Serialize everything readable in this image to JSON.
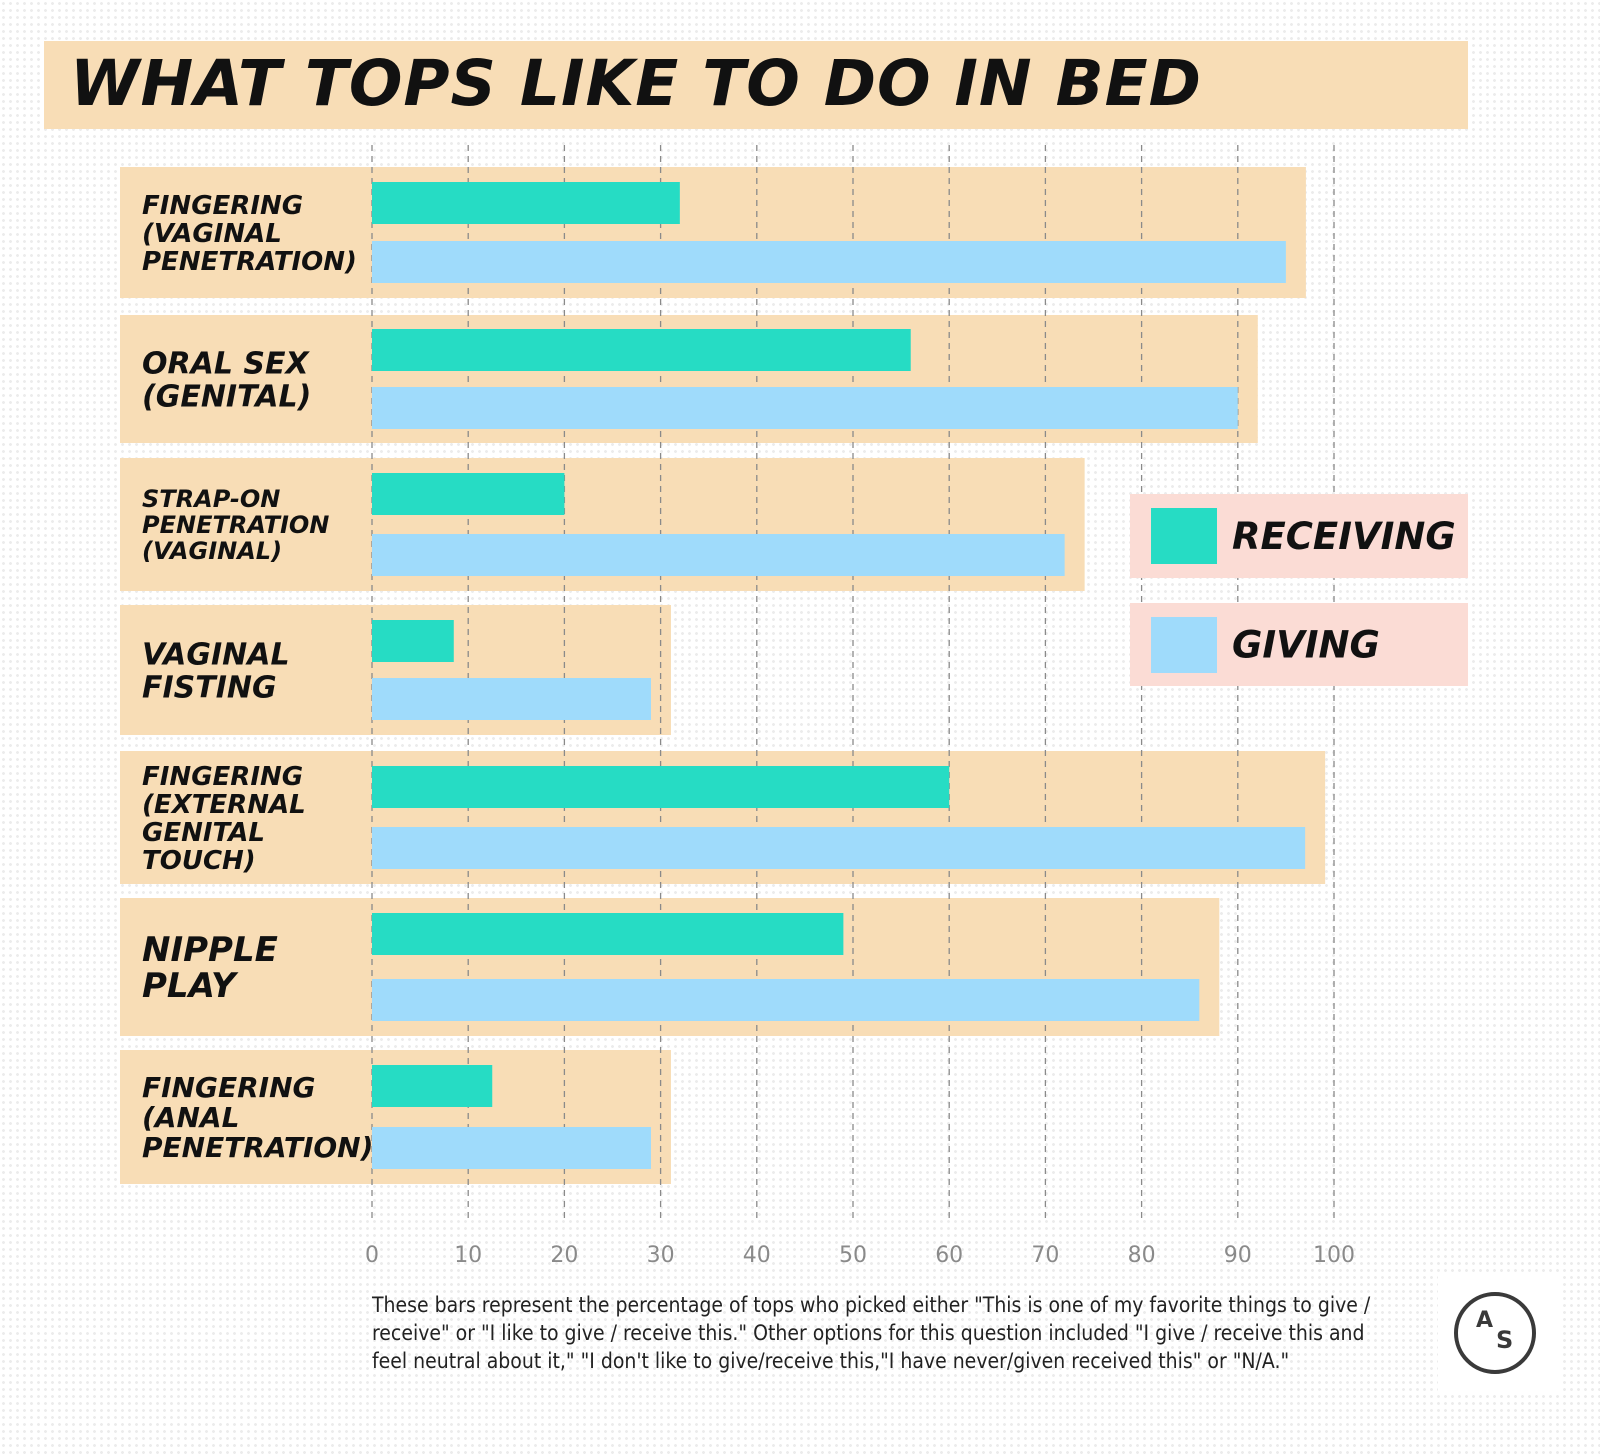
{
  "colors": {
    "receiving": "#26dcc4",
    "giving": "#9fdbfb",
    "band": "#f8ddb6",
    "legend_band": "#fbdcd5",
    "text": "#111111",
    "grid": "#8a8a8a"
  },
  "title": "WHAT TOPS LIKE TO DO IN BED",
  "chart_data": {
    "type": "bar",
    "orientation": "horizontal",
    "title": "WHAT TOPS LIKE TO DO IN BED",
    "categories": [
      [
        "FINGERING",
        "(VAGINAL",
        "PENETRATION)"
      ],
      [
        "ORAL SEX",
        "(GENITAL)"
      ],
      [
        "STRAP-ON",
        "PENETRATION",
        "(VAGINAL)"
      ],
      [
        "VAGINAL",
        "FISTING"
      ],
      [
        "FINGERING",
        "(EXTERNAL",
        "GENITAL",
        "TOUCH)"
      ],
      [
        "NIPPLE",
        "PLAY"
      ],
      [
        "FINGERING",
        "(ANAL",
        "PENETRATION)"
      ]
    ],
    "series": [
      {
        "name": "RECEIVING",
        "values": [
          32,
          56,
          20,
          8.5,
          60,
          49,
          12.5
        ]
      },
      {
        "name": "GIVING",
        "values": [
          95,
          90,
          72,
          29,
          97,
          86,
          29
        ]
      }
    ],
    "xlim": [
      0,
      100
    ],
    "xticks": [
      "0",
      "10",
      "20",
      "30",
      "40",
      "50",
      "60",
      "70",
      "80",
      "90",
      "100"
    ],
    "grid": "vertical dashed",
    "legend_position": "right"
  },
  "legend": {
    "receiving_label": "RECEIVING",
    "giving_label": "GIVING"
  },
  "footnote": "These bars represent the percentage of tops who picked either \"This is one of my favorite things to give / receive\" or \"I like to give / receive this.\" Other options for this question included \"I give / receive this and feel neutral about it,\" \"I don't like to give/receive this,\"I have never/given received this\" or \"N/A.\"",
  "logo": {
    "top": "A",
    "bottom": "S"
  }
}
